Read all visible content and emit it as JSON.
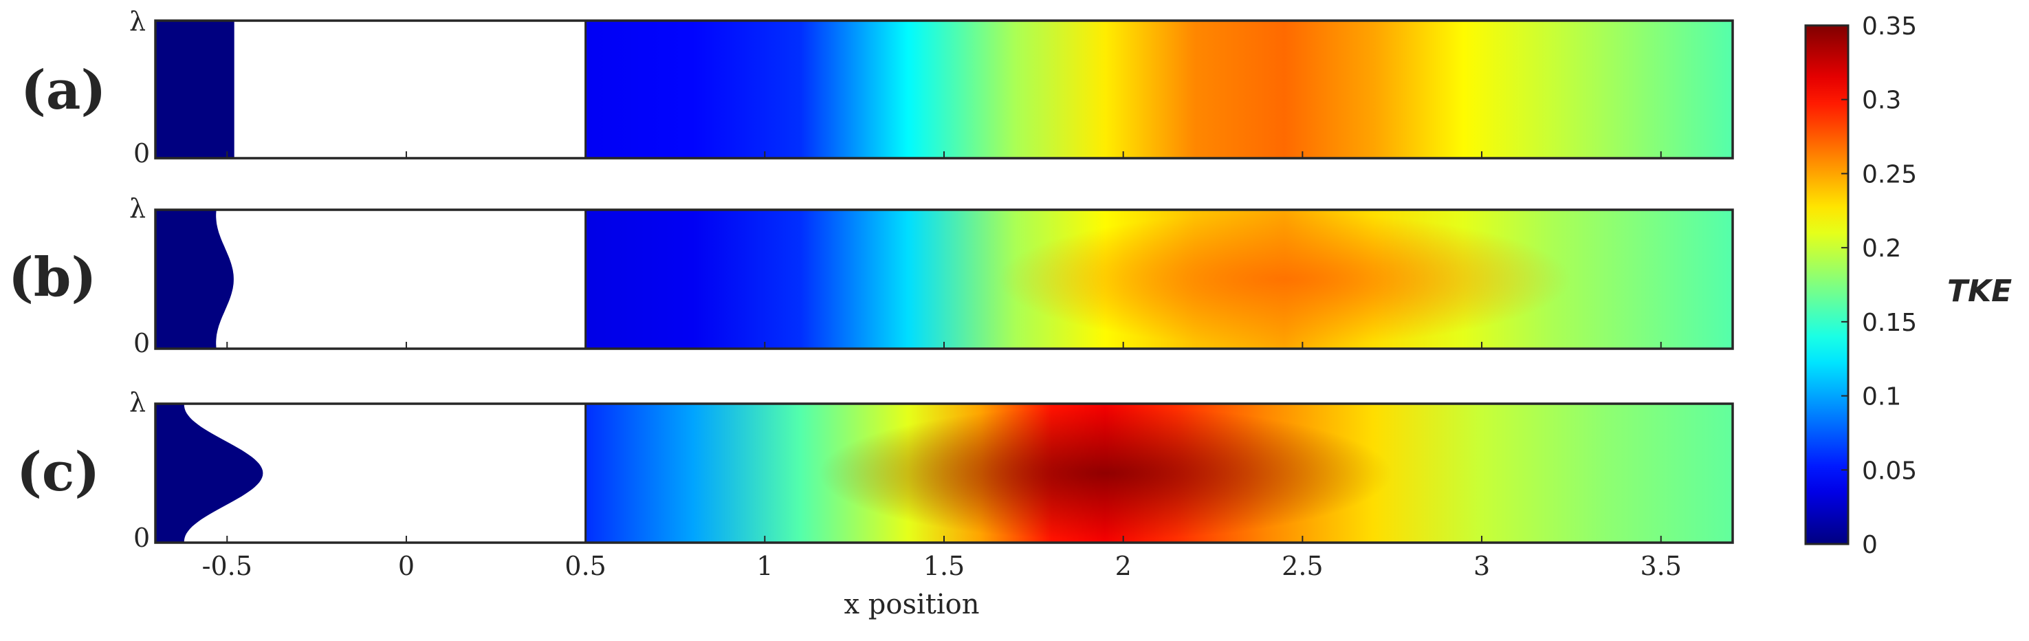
{
  "chart_data": {
    "type": "heatmap",
    "xlabel": "x position",
    "x_ticks": [
      -0.5,
      0,
      0.5,
      1,
      1.5,
      2,
      2.5,
      3,
      3.5
    ],
    "x_tick_labels": [
      "-0.5",
      "0",
      "0.5",
      "1",
      "1.5",
      "2",
      "2.5",
      "3",
      "3.5"
    ],
    "xlim": [
      -0.7,
      3.7
    ],
    "y_tick_labels": [
      "0",
      "λ"
    ],
    "colorbar": {
      "label": "TKE",
      "range": [
        0,
        0.35
      ],
      "ticks": [
        0,
        0.05,
        0.1,
        0.15,
        0.2,
        0.25,
        0.3,
        0.35
      ],
      "tick_labels": [
        "0",
        "0.05",
        "0.1",
        "0.15",
        "0.2",
        "0.25",
        "0.3",
        "0.35"
      ],
      "colormap": "jet"
    },
    "panels": [
      {
        "label": "(a)",
        "inlet_profile": "uniform",
        "inlet_reach_x": -0.48,
        "blank_region_x": [
          -0.48,
          0.5
        ],
        "tke_profile": [
          {
            "x": 0.5,
            "tke": 0.04
          },
          {
            "x": 0.8,
            "tke": 0.045
          },
          {
            "x": 1.1,
            "tke": 0.06
          },
          {
            "x": 1.4,
            "tke": 0.13
          },
          {
            "x": 1.7,
            "tke": 0.19
          },
          {
            "x": 1.95,
            "tke": 0.225
          },
          {
            "x": 2.2,
            "tke": 0.26
          },
          {
            "x": 2.45,
            "tke": 0.27
          },
          {
            "x": 2.7,
            "tke": 0.25
          },
          {
            "x": 2.95,
            "tke": 0.22
          },
          {
            "x": 3.2,
            "tke": 0.2
          },
          {
            "x": 3.45,
            "tke": 0.18
          },
          {
            "x": 3.7,
            "tke": 0.16
          }
        ],
        "tke_peak_boost": 0
      },
      {
        "label": "(b)",
        "inlet_profile": "weak-bump",
        "inlet_reach_x": -0.53,
        "inlet_bump_amp": 0.06,
        "blank_region_x": [
          -0.53,
          0.5
        ],
        "tke_profile": [
          {
            "x": 0.5,
            "tke": 0.035
          },
          {
            "x": 0.8,
            "tke": 0.04
          },
          {
            "x": 1.1,
            "tke": 0.06
          },
          {
            "x": 1.4,
            "tke": 0.12
          },
          {
            "x": 1.7,
            "tke": 0.19
          },
          {
            "x": 1.95,
            "tke": 0.22
          },
          {
            "x": 2.2,
            "tke": 0.24
          },
          {
            "x": 2.45,
            "tke": 0.25
          },
          {
            "x": 2.7,
            "tke": 0.23
          },
          {
            "x": 2.95,
            "tke": 0.21
          },
          {
            "x": 3.2,
            "tke": 0.19
          },
          {
            "x": 3.45,
            "tke": 0.175
          },
          {
            "x": 3.7,
            "tke": 0.16
          }
        ],
        "tke_peak_boost": 0.02
      },
      {
        "label": "(c)",
        "inlet_profile": "strong-bump",
        "inlet_reach_x": -0.62,
        "inlet_bump_amp": 0.22,
        "blank_region_x": [
          -0.62,
          0.5
        ],
        "tke_profile": [
          {
            "x": 0.5,
            "tke": 0.06
          },
          {
            "x": 0.8,
            "tke": 0.1
          },
          {
            "x": 1.1,
            "tke": 0.16
          },
          {
            "x": 1.4,
            "tke": 0.21
          },
          {
            "x": 1.6,
            "tke": 0.25
          },
          {
            "x": 1.8,
            "tke": 0.3
          },
          {
            "x": 1.95,
            "tke": 0.31
          },
          {
            "x": 2.15,
            "tke": 0.29
          },
          {
            "x": 2.4,
            "tke": 0.26
          },
          {
            "x": 2.7,
            "tke": 0.23
          },
          {
            "x": 3.0,
            "tke": 0.2
          },
          {
            "x": 3.35,
            "tke": 0.18
          },
          {
            "x": 3.7,
            "tke": 0.165
          }
        ],
        "tke_peak_boost": 0.04
      }
    ]
  }
}
